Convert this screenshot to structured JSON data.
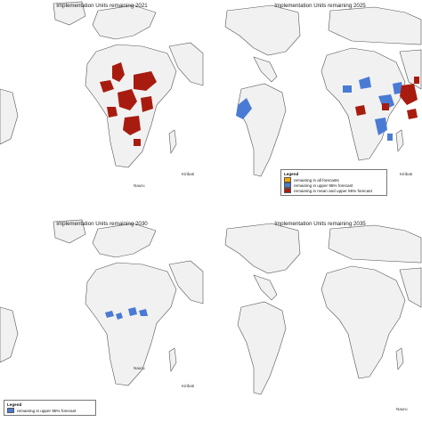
{
  "colors": {
    "land": "#f1f1f1",
    "coast": "#555555",
    "orange": "#f0a800",
    "blue": "#4a7bd4",
    "red": "#a81c10"
  },
  "panels": [
    {
      "title": "Implementation Units remaining 2021",
      "inset_labels": {
        "nauru": "Nauru",
        "kiribati": "Kiribati"
      }
    },
    {
      "title": "Implementation Units remaining 2025",
      "inset_labels": {
        "nauru": "Nauru",
        "kiribati": "Kiribati"
      },
      "legend": {
        "title": "Legend",
        "items": [
          {
            "label": "remaining in all forecasts",
            "color": "#f0a800"
          },
          {
            "label": "remaining in upper 95% forecast",
            "color": "#4a7bd4"
          },
          {
            "label": "remaining in mean and upper 95% forecast",
            "color": "#a81c10"
          }
        ]
      }
    },
    {
      "title": "Implementation Units remaining 2030",
      "inset_labels": {
        "nauru": "Nauru",
        "kiribati": "Kiribati"
      },
      "legend": {
        "title": "Legend",
        "items": [
          {
            "label": "remaining in upper 95% forecast",
            "color": "#4a7bd4"
          }
        ]
      }
    },
    {
      "title": "Implementation Units remaining 2035",
      "inset_labels": {
        "nauru": "Nauru"
      }
    }
  ]
}
